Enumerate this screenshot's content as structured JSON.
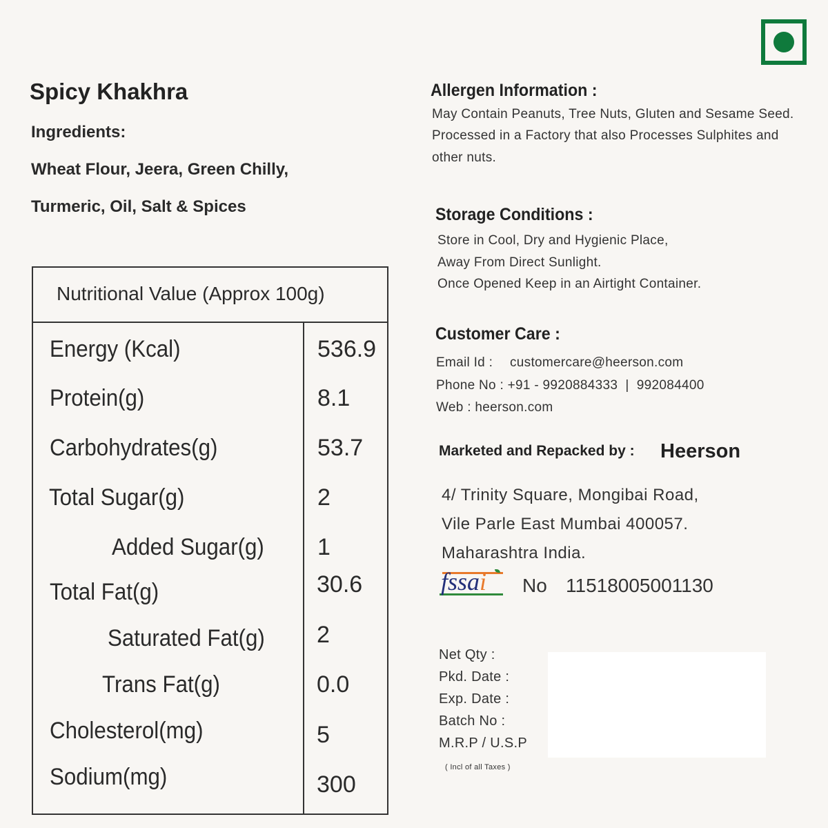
{
  "veg_symbol": {
    "color": "#0f7a3c",
    "icon": "veg-mark-icon"
  },
  "product": {
    "name": "Spicy Khakhra",
    "ingredients_heading": "Ingredients:",
    "ingredients_line1": "Wheat Flour, Jeera, Green Chilly,",
    "ingredients_line2": "Turmeric, Oil, Salt & Spices"
  },
  "nutrition": {
    "heading": "Nutritional Value (Approx 100g)",
    "rows": [
      {
        "label": "Energy (Kcal)",
        "value": "536.9"
      },
      {
        "label": "Protein(g)",
        "value": "8.1"
      },
      {
        "label": "Carbohydrates(g)",
        "value": "53.7"
      },
      {
        "label": "Total Sugar(g)",
        "value": "2"
      },
      {
        "label": "Added Sugar(g)",
        "value": "1"
      },
      {
        "label": "Total Fat(g)",
        "value": "30.6"
      },
      {
        "label": "Saturated Fat(g)",
        "value": "2"
      },
      {
        "label": "Trans Fat(g)",
        "value": "0.0"
      },
      {
        "label": "Cholesterol(mg)",
        "value": "5"
      },
      {
        "label": "Sodium(mg)",
        "value": "300"
      }
    ]
  },
  "allergen": {
    "heading": "Allergen Information :",
    "lines": [
      "May Contain Peanuts, Tree Nuts, Gluten and Sesame Seed.",
      "Processed in a Factory that also Processes Sulphites and",
      "other nuts."
    ]
  },
  "storage": {
    "heading": "Storage Conditions :",
    "lines": [
      "Store in Cool, Dry and Hygienic Place,",
      "Away From Direct Sunlight.",
      "Once Opened Keep in an Airtight Container."
    ]
  },
  "customer_care": {
    "heading": "Customer Care :",
    "email_label": "Email Id :",
    "email": "customercare@heerson.com",
    "phone": "Phone No : +91 - 9920884333  |  992084400",
    "web": "Web : heerson.com"
  },
  "marketer": {
    "label": "Marketed and Repacked by :",
    "brand": "Heerson",
    "address": [
      "4/ Trinity Square, Mongibai Road,",
      "Vile Parle East Mumbai 400057.",
      "Maharashtra India."
    ]
  },
  "fssai": {
    "logo_text": "fssai",
    "no_label": "No",
    "number": "11518005001130"
  },
  "pack_info": {
    "labels": [
      "Net Qty :",
      "Pkd. Date :",
      "Exp. Date :",
      "Batch No :",
      "M.R.P / U.S.P"
    ],
    "note": "( Incl of all Taxes )"
  }
}
